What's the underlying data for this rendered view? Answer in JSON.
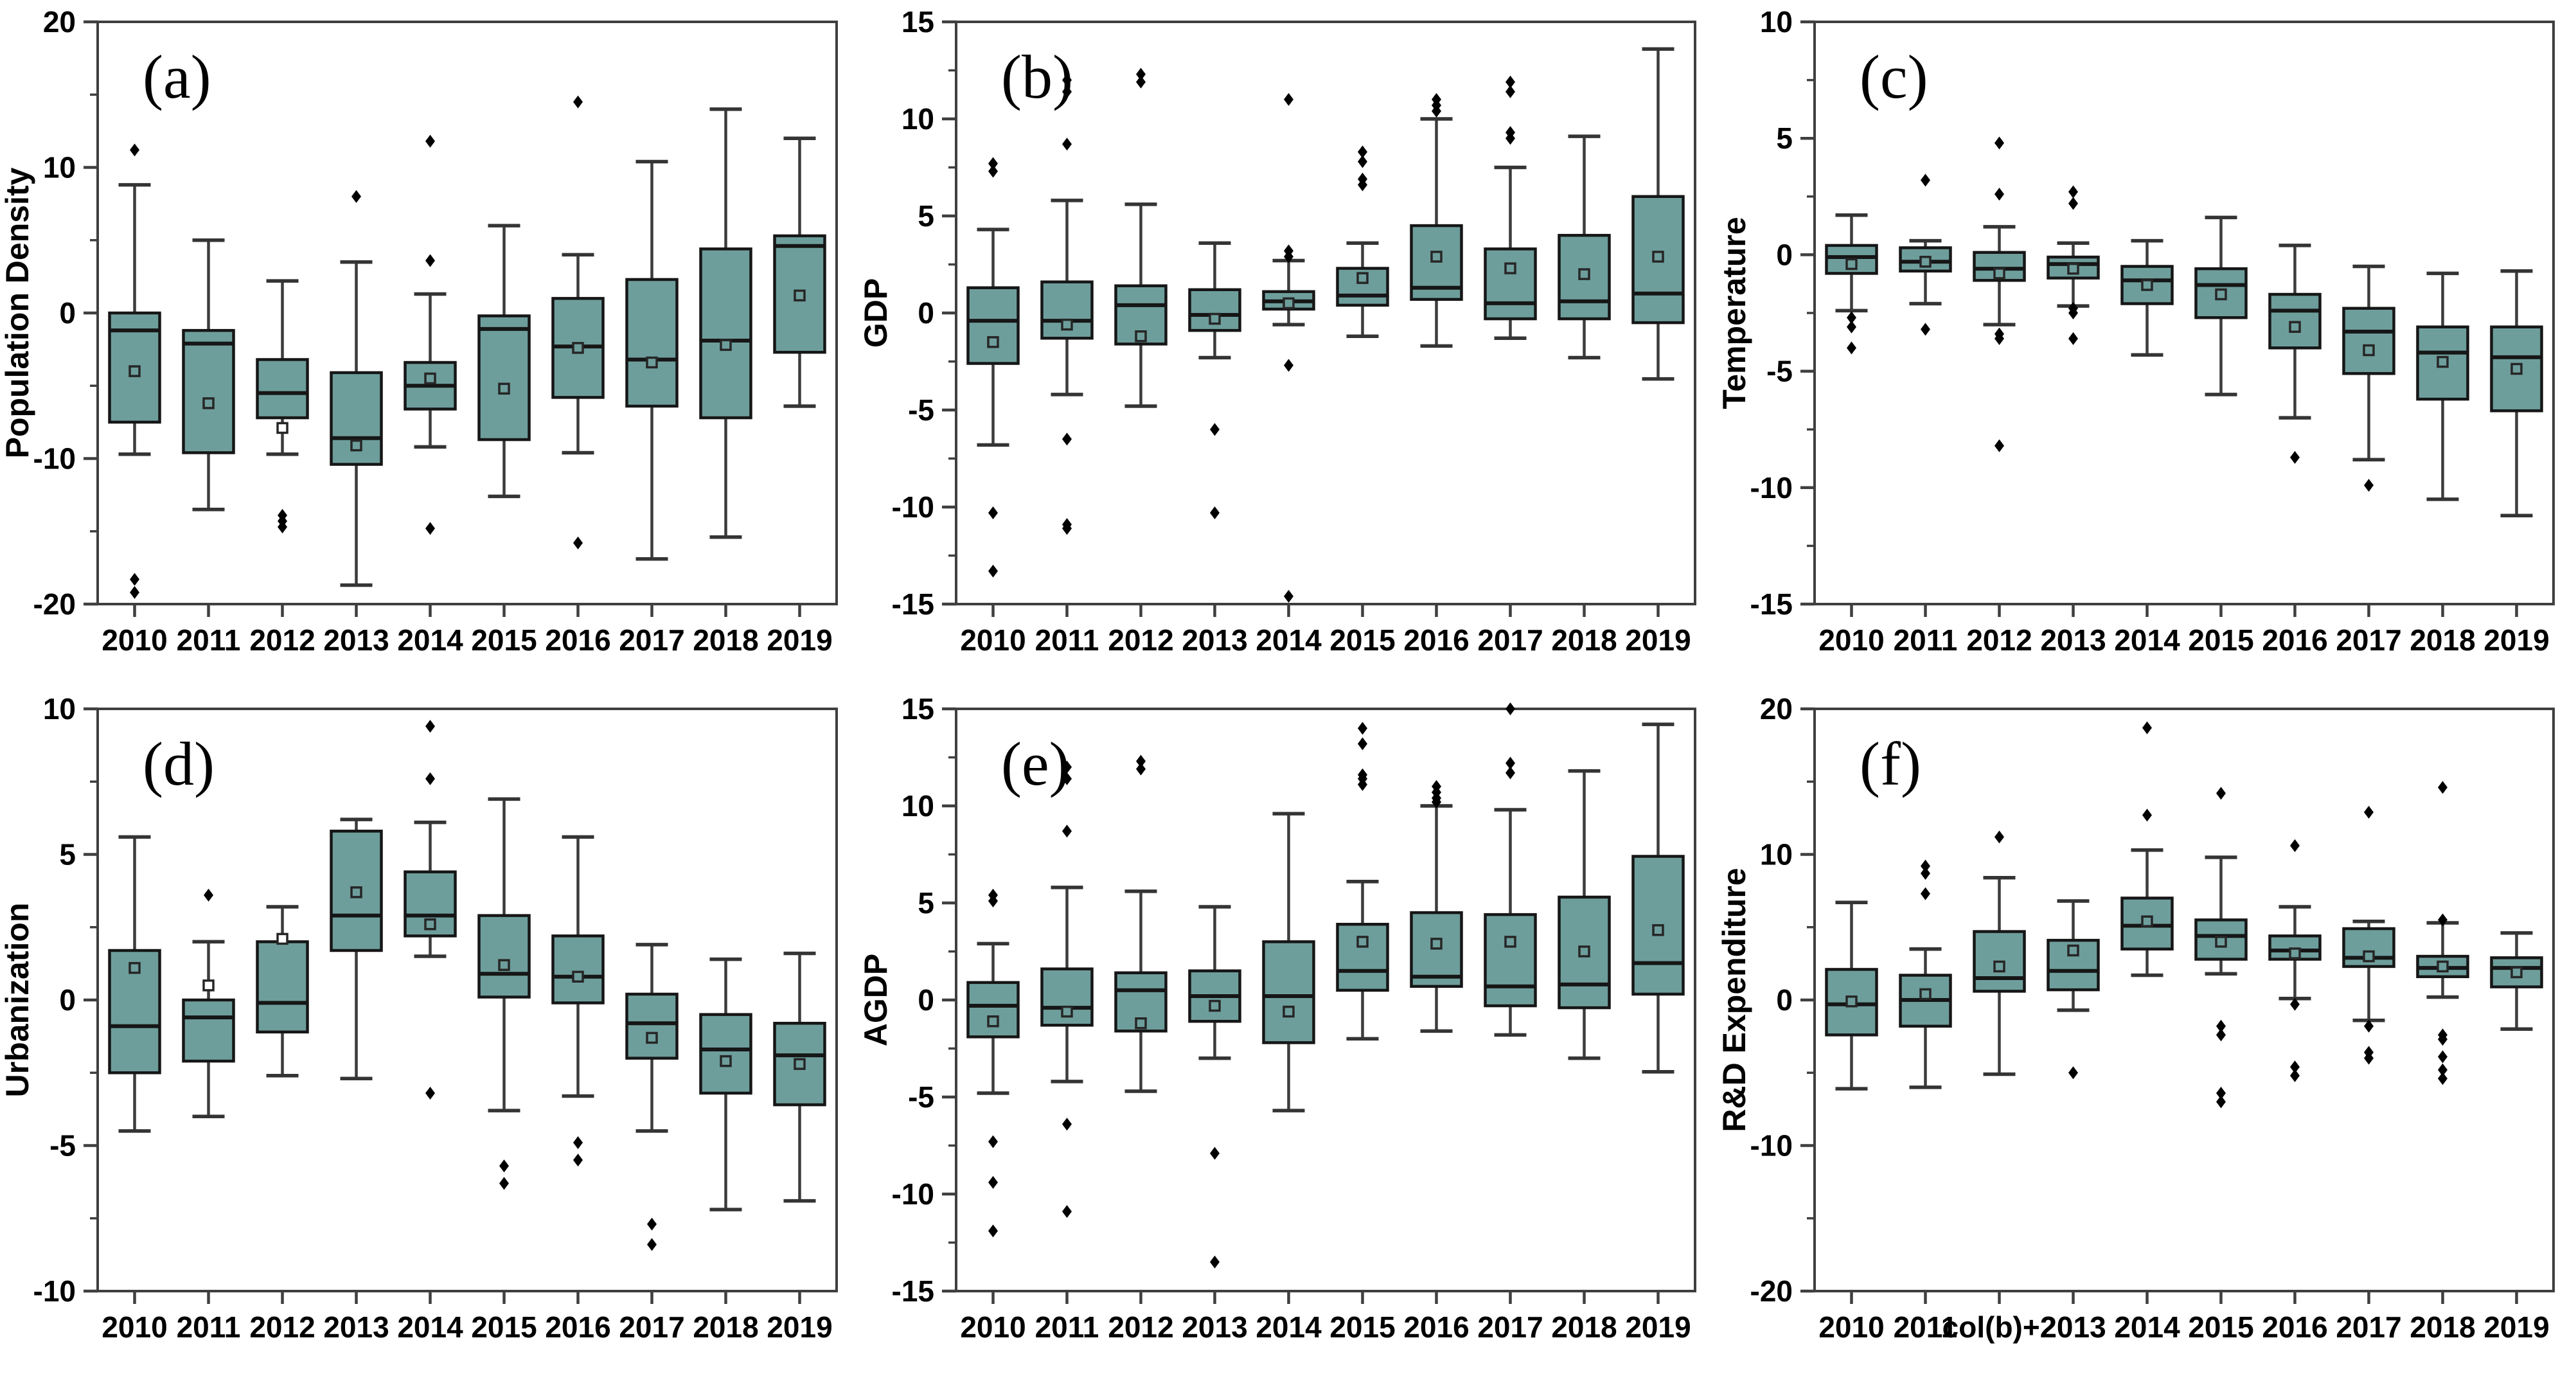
{
  "figure": {
    "description_visible_text_only": true,
    "panel_count": 6
  },
  "colors": {
    "background": "#ffffff",
    "box_fill": "#6d9e9c",
    "box_edge": "#161616",
    "median_line": "#161616",
    "whisker": "#3c3c3c",
    "whisker_cap": "#343434",
    "outlier": "#000000",
    "mean_marker_edge": "#262626",
    "mean_marker_fill_outside": "#ffffff",
    "frame": "#3f3f3f",
    "tick": "#3f3f3f",
    "text": "#000000"
  },
  "chart_data": [
    {
      "type": "box",
      "panel_label": "(a)",
      "ylabel": "Population Density",
      "ylim": [
        -20,
        20
      ],
      "yticks": [
        20,
        10,
        0,
        -10,
        -20
      ],
      "yticks_minor": [
        15,
        5,
        -5,
        -15
      ],
      "grid": false,
      "legend": "none",
      "categories": [
        "2010",
        "2011",
        "2012",
        "2013",
        "2014",
        "2015",
        "2016",
        "2017",
        "2018",
        "2019"
      ],
      "boxes": [
        {
          "low": -9.7,
          "q1": -7.5,
          "median": -1.2,
          "q3": 0.0,
          "high": 8.8,
          "mean": -4.0,
          "outliers": [
            11.2,
            -18.3,
            -19.2
          ]
        },
        {
          "low": -13.5,
          "q1": -9.6,
          "median": -2.1,
          "q3": -1.2,
          "high": 5.0,
          "mean": -6.2,
          "outliers": []
        },
        {
          "low": -9.7,
          "q1": -7.2,
          "median": -5.5,
          "q3": -3.2,
          "high": 2.2,
          "mean": -7.9,
          "outliers": [
            -13.9,
            -14.3,
            -14.7
          ]
        },
        {
          "low": -18.7,
          "q1": -10.4,
          "median": -8.6,
          "q3": -4.1,
          "high": 3.5,
          "mean": -9.1,
          "outliers": [
            8.0
          ]
        },
        {
          "low": -9.2,
          "q1": -6.6,
          "median": -5.0,
          "q3": -3.4,
          "high": 1.3,
          "mean": -4.5,
          "outliers": [
            11.8,
            3.6,
            -14.8
          ]
        },
        {
          "low": -12.6,
          "q1": -8.7,
          "median": -1.1,
          "q3": -0.2,
          "high": 6.0,
          "mean": -5.2,
          "outliers": []
        },
        {
          "low": -9.6,
          "q1": -5.8,
          "median": -2.3,
          "q3": 1.0,
          "high": 4.0,
          "mean": -2.4,
          "outliers": [
            14.5,
            -15.8
          ]
        },
        {
          "low": -16.9,
          "q1": -6.4,
          "median": -3.2,
          "q3": 2.3,
          "high": 10.4,
          "mean": -3.4,
          "outliers": []
        },
        {
          "low": -15.4,
          "q1": -7.2,
          "median": -1.9,
          "q3": 4.4,
          "high": 14.0,
          "mean": -2.2,
          "outliers": []
        },
        {
          "low": -6.4,
          "q1": -2.7,
          "median": 4.6,
          "q3": 5.3,
          "high": 12.0,
          "mean": 1.2,
          "outliers": []
        }
      ]
    },
    {
      "type": "box",
      "panel_label": "(b)",
      "ylabel": "GDP",
      "ylim": [
        -15,
        15
      ],
      "yticks": [
        15,
        10,
        5,
        0,
        -5,
        -10,
        -15
      ],
      "yticks_minor": [
        12.5,
        7.5,
        2.5,
        -2.5,
        -7.5,
        -12.5
      ],
      "grid": false,
      "legend": "none",
      "categories": [
        "2010",
        "2011",
        "2012",
        "2013",
        "2014",
        "2015",
        "2016",
        "2017",
        "2018",
        "2019"
      ],
      "boxes": [
        {
          "low": -6.8,
          "q1": -2.6,
          "median": -0.4,
          "q3": 1.3,
          "high": 4.3,
          "mean": -1.5,
          "outliers": [
            7.7,
            7.3,
            -10.3,
            -13.3
          ]
        },
        {
          "low": -4.2,
          "q1": -1.3,
          "median": -0.4,
          "q3": 1.6,
          "high": 5.8,
          "mean": -0.6,
          "outliers": [
            12.0,
            11.4,
            8.7,
            -6.5,
            -10.9,
            -11.1
          ]
        },
        {
          "low": -4.8,
          "q1": -1.6,
          "median": 0.4,
          "q3": 1.4,
          "high": 5.6,
          "mean": -1.2,
          "outliers": [
            12.3,
            11.9
          ]
        },
        {
          "low": -2.3,
          "q1": -0.9,
          "median": -0.1,
          "q3": 1.2,
          "high": 3.6,
          "mean": -0.3,
          "outliers": [
            -6.0,
            -10.3
          ]
        },
        {
          "low": -0.6,
          "q1": 0.2,
          "median": 0.6,
          "q3": 1.1,
          "high": 2.7,
          "mean": 0.5,
          "outliers": [
            11.0,
            3.2,
            2.9,
            -2.7,
            -14.6
          ]
        },
        {
          "low": -1.2,
          "q1": 0.4,
          "median": 0.9,
          "q3": 2.3,
          "high": 3.6,
          "mean": 1.8,
          "outliers": [
            8.3,
            7.8,
            6.9,
            6.6
          ]
        },
        {
          "low": -1.7,
          "q1": 0.7,
          "median": 1.3,
          "q3": 4.5,
          "high": 10.0,
          "mean": 2.9,
          "outliers": [
            11.0,
            10.7,
            10.4
          ]
        },
        {
          "low": -1.3,
          "q1": -0.3,
          "median": 0.5,
          "q3": 3.3,
          "high": 7.5,
          "mean": 2.3,
          "outliers": [
            11.9,
            11.4,
            9.3,
            9.0
          ]
        },
        {
          "low": -2.3,
          "q1": -0.3,
          "median": 0.6,
          "q3": 4.0,
          "high": 9.1,
          "mean": 2.0,
          "outliers": []
        },
        {
          "low": -3.4,
          "q1": -0.5,
          "median": 1.0,
          "q3": 6.0,
          "high": 13.6,
          "mean": 2.9,
          "outliers": []
        }
      ]
    },
    {
      "type": "box",
      "panel_label": "(c)",
      "ylabel": "Temperature",
      "ylim": [
        -15,
        10
      ],
      "yticks": [
        10,
        5,
        0,
        -5,
        -10,
        -15
      ],
      "yticks_minor": [
        7.5,
        2.5,
        -2.5,
        -7.5,
        -12.5
      ],
      "grid": false,
      "legend": "none",
      "categories": [
        "2010",
        "2011",
        "2012",
        "2013",
        "2014",
        "2015",
        "2016",
        "2017",
        "2018",
        "2019"
      ],
      "boxes": [
        {
          "low": -2.4,
          "q1": -0.8,
          "median": -0.1,
          "q3": 0.4,
          "high": 1.7,
          "mean": -0.4,
          "outliers": [
            -2.7,
            -3.1,
            -4.0
          ]
        },
        {
          "low": -2.1,
          "q1": -0.7,
          "median": -0.3,
          "q3": 0.3,
          "high": 0.6,
          "mean": -0.3,
          "outliers": [
            3.2,
            -3.2
          ]
        },
        {
          "low": -3.0,
          "q1": -1.1,
          "median": -0.6,
          "q3": 0.1,
          "high": 1.2,
          "mean": -0.8,
          "outliers": [
            4.8,
            2.6,
            -3.4,
            -3.6,
            -8.2
          ]
        },
        {
          "low": -2.2,
          "q1": -1.0,
          "median": -0.4,
          "q3": -0.1,
          "high": 0.5,
          "mean": -0.6,
          "outliers": [
            2.7,
            2.2,
            -2.3,
            -2.5,
            -3.6
          ]
        },
        {
          "low": -4.3,
          "q1": -2.1,
          "median": -1.1,
          "q3": -0.5,
          "high": 0.6,
          "mean": -1.3,
          "outliers": []
        },
        {
          "low": -6.0,
          "q1": -2.7,
          "median": -1.3,
          "q3": -0.6,
          "high": 1.6,
          "mean": -1.7,
          "outliers": []
        },
        {
          "low": -7.0,
          "q1": -4.0,
          "median": -2.4,
          "q3": -1.7,
          "high": 0.4,
          "mean": -3.1,
          "outliers": [
            -8.7
          ]
        },
        {
          "low": -8.8,
          "q1": -5.1,
          "median": -3.3,
          "q3": -2.3,
          "high": -0.5,
          "mean": -4.1,
          "outliers": [
            -9.9
          ]
        },
        {
          "low": -10.5,
          "q1": -6.2,
          "median": -4.2,
          "q3": -3.1,
          "high": -0.8,
          "mean": -4.6,
          "outliers": []
        },
        {
          "low": -11.2,
          "q1": -6.7,
          "median": -4.4,
          "q3": -3.1,
          "high": -0.7,
          "mean": -4.9,
          "outliers": []
        }
      ]
    },
    {
      "type": "box",
      "panel_label": "(d)",
      "ylabel": "Urbanization",
      "ylim": [
        -10,
        10
      ],
      "yticks": [
        10,
        5,
        0,
        -5,
        -10
      ],
      "yticks_minor": [
        7.5,
        2.5,
        -2.5,
        -7.5
      ],
      "grid": false,
      "legend": "none",
      "categories": [
        "2010",
        "2011",
        "2012",
        "2013",
        "2014",
        "2015",
        "2016",
        "2017",
        "2018",
        "2019"
      ],
      "boxes": [
        {
          "low": -4.5,
          "q1": -2.5,
          "median": -0.9,
          "q3": 1.7,
          "high": 5.6,
          "mean": 1.1,
          "outliers": []
        },
        {
          "low": -4.0,
          "q1": -2.1,
          "median": -0.6,
          "q3": 0.0,
          "high": 2.0,
          "mean": 0.5,
          "outliers": [
            3.6
          ]
        },
        {
          "low": -2.6,
          "q1": -1.1,
          "median": -0.1,
          "q3": 2.0,
          "high": 3.2,
          "mean": 2.1,
          "outliers": []
        },
        {
          "low": -2.7,
          "q1": 1.7,
          "median": 2.9,
          "q3": 5.8,
          "high": 6.2,
          "mean": 3.7,
          "outliers": []
        },
        {
          "low": 1.5,
          "q1": 2.2,
          "median": 2.9,
          "q3": 4.4,
          "high": 6.1,
          "mean": 2.6,
          "outliers": [
            9.4,
            7.6,
            -3.2
          ]
        },
        {
          "low": -3.8,
          "q1": 0.1,
          "median": 0.9,
          "q3": 2.9,
          "high": 6.9,
          "mean": 1.2,
          "outliers": [
            -5.7,
            -6.3
          ]
        },
        {
          "low": -3.3,
          "q1": -0.1,
          "median": 0.8,
          "q3": 2.2,
          "high": 5.6,
          "mean": 0.8,
          "outliers": [
            -4.9,
            -5.5
          ]
        },
        {
          "low": -4.5,
          "q1": -2.0,
          "median": -0.8,
          "q3": 0.2,
          "high": 1.9,
          "mean": -1.3,
          "outliers": [
            -7.7,
            -8.4
          ]
        },
        {
          "low": -7.2,
          "q1": -3.2,
          "median": -1.7,
          "q3": -0.5,
          "high": 1.4,
          "mean": -2.1,
          "outliers": []
        },
        {
          "low": -6.9,
          "q1": -3.6,
          "median": -1.9,
          "q3": -0.8,
          "high": 1.6,
          "mean": -2.2,
          "outliers": []
        }
      ]
    },
    {
      "type": "box",
      "panel_label": "(e)",
      "ylabel": "AGDP",
      "ylim": [
        -15,
        15
      ],
      "yticks": [
        15,
        10,
        5,
        0,
        -5,
        -10,
        -15
      ],
      "yticks_minor": [
        12.5,
        7.5,
        2.5,
        -2.5,
        -7.5,
        -12.5
      ],
      "grid": false,
      "legend": "none",
      "categories": [
        "2010",
        "2011",
        "2012",
        "2013",
        "2014",
        "2015",
        "2016",
        "2017",
        "2018",
        "2019"
      ],
      "boxes": [
        {
          "low": -4.8,
          "q1": -1.9,
          "median": -0.3,
          "q3": 0.9,
          "high": 2.9,
          "mean": -1.1,
          "outliers": [
            5.4,
            5.1,
            -7.3,
            -9.4,
            -11.9
          ]
        },
        {
          "low": -4.2,
          "q1": -1.3,
          "median": -0.4,
          "q3": 1.6,
          "high": 5.8,
          "mean": -0.6,
          "outliers": [
            12.0,
            11.4,
            8.7,
            -6.4,
            -10.9
          ]
        },
        {
          "low": -4.7,
          "q1": -1.6,
          "median": 0.5,
          "q3": 1.4,
          "high": 5.6,
          "mean": -1.2,
          "outliers": [
            12.3,
            11.9
          ]
        },
        {
          "low": -3.0,
          "q1": -1.1,
          "median": 0.2,
          "q3": 1.5,
          "high": 4.8,
          "mean": -0.3,
          "outliers": [
            -7.9,
            -13.5
          ]
        },
        {
          "low": -5.7,
          "q1": -2.2,
          "median": 0.2,
          "q3": 3.0,
          "high": 9.6,
          "mean": -0.6,
          "outliers": []
        },
        {
          "low": -2.0,
          "q1": 0.5,
          "median": 1.5,
          "q3": 3.9,
          "high": 6.1,
          "mean": 3.0,
          "outliers": [
            14.0,
            13.2,
            11.6,
            11.4,
            11.1
          ]
        },
        {
          "low": -1.6,
          "q1": 0.7,
          "median": 1.2,
          "q3": 4.5,
          "high": 10.0,
          "mean": 2.9,
          "outliers": [
            11.0,
            10.7,
            10.4,
            10.2
          ]
        },
        {
          "low": -1.8,
          "q1": -0.3,
          "median": 0.7,
          "q3": 4.4,
          "high": 9.8,
          "mean": 3.0,
          "outliers": [
            15.0,
            12.2,
            11.7
          ]
        },
        {
          "low": -3.0,
          "q1": -0.4,
          "median": 0.8,
          "q3": 5.3,
          "high": 11.8,
          "mean": 2.5,
          "outliers": []
        },
        {
          "low": -3.7,
          "q1": 0.3,
          "median": 1.9,
          "q3": 7.4,
          "high": 14.2,
          "mean": 3.6,
          "outliers": []
        }
      ]
    },
    {
      "type": "box",
      "panel_label": "(f)",
      "ylabel": "R&D Expenditure",
      "ylim": [
        -20,
        20
      ],
      "yticks": [
        20,
        10,
        0,
        -10,
        -20
      ],
      "yticks_minor": [
        15,
        5,
        -5,
        -15
      ],
      "grid": false,
      "legend": "none",
      "categories": [
        "2010",
        "2011",
        "col(b)+2",
        "2013",
        "2014",
        "2015",
        "2016",
        "2017",
        "2018",
        "2019"
      ],
      "boxes": [
        {
          "low": -6.1,
          "q1": -2.4,
          "median": -0.3,
          "q3": 2.1,
          "high": 6.7,
          "mean": -0.1,
          "outliers": []
        },
        {
          "low": -6.0,
          "q1": -1.8,
          "median": 0.0,
          "q3": 1.7,
          "high": 3.5,
          "mean": 0.4,
          "outliers": [
            9.2,
            8.7,
            7.3
          ]
        },
        {
          "low": -5.1,
          "q1": 0.6,
          "median": 1.5,
          "q3": 4.7,
          "high": 8.4,
          "mean": 2.3,
          "outliers": [
            11.2
          ]
        },
        {
          "low": -0.7,
          "q1": 0.7,
          "median": 2.0,
          "q3": 4.1,
          "high": 6.8,
          "mean": 3.4,
          "outliers": [
            -5.0
          ]
        },
        {
          "low": 1.7,
          "q1": 3.5,
          "median": 5.1,
          "q3": 7.0,
          "high": 10.3,
          "mean": 5.4,
          "outliers": [
            18.7,
            12.7
          ]
        },
        {
          "low": 1.8,
          "q1": 2.8,
          "median": 4.4,
          "q3": 5.5,
          "high": 9.8,
          "mean": 4.0,
          "outliers": [
            14.2,
            -1.8,
            -2.4,
            -6.4,
            -7.0
          ]
        },
        {
          "low": 0.1,
          "q1": 2.8,
          "median": 3.4,
          "q3": 4.4,
          "high": 6.4,
          "mean": 3.2,
          "outliers": [
            10.6,
            -0.3,
            -4.6,
            -5.2
          ]
        },
        {
          "low": -1.4,
          "q1": 2.3,
          "median": 2.9,
          "q3": 4.9,
          "high": 5.4,
          "mean": 3.0,
          "outliers": [
            12.9,
            -1.8,
            -3.6,
            -4.0
          ]
        },
        {
          "low": 0.2,
          "q1": 1.6,
          "median": 2.2,
          "q3": 3.0,
          "high": 5.3,
          "mean": 2.3,
          "outliers": [
            14.6,
            5.5,
            -2.4,
            -2.7,
            -3.9,
            -4.8,
            -5.4
          ]
        },
        {
          "low": -2.0,
          "q1": 0.9,
          "median": 2.2,
          "q3": 2.9,
          "high": 4.6,
          "mean": 1.9,
          "outliers": []
        }
      ]
    }
  ]
}
